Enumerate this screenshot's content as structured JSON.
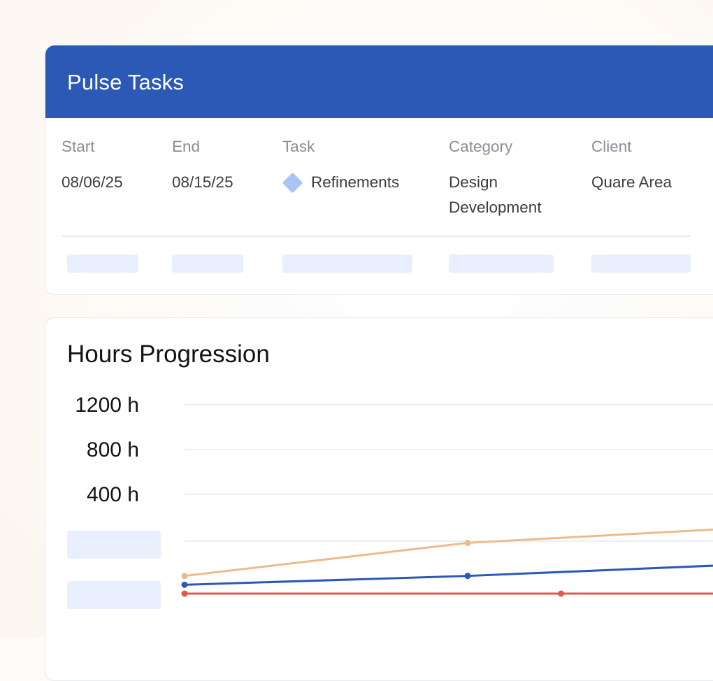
{
  "tasks_card": {
    "title": "Pulse Tasks",
    "columns": {
      "start": {
        "label": "Start",
        "value": "08/06/25"
      },
      "end": {
        "label": "End",
        "value": "08/15/25"
      },
      "task": {
        "label": "Task",
        "value": "Refinements",
        "icon": "diamond-icon",
        "icon_color": "#a9c5f7"
      },
      "category": {
        "label": "Category",
        "value_line1": "Design",
        "value_line2": "Development"
      },
      "client": {
        "label": "Client",
        "value": "Quare Area"
      }
    },
    "header_color": "#2b59b5"
  },
  "hours_card": {
    "title": "Hours Progression"
  },
  "chart_data": {
    "type": "line",
    "title": "Hours Progression",
    "y_ticks": [
      "1200 h",
      "800 h",
      "400 h"
    ],
    "series": [
      {
        "color": "#f0b98a",
        "x": [
          0,
          0.5,
          1.0
        ],
        "y": [
          150,
          430,
          560
        ]
      },
      {
        "color": "#2b59b5",
        "x": [
          0,
          0.5,
          1.0
        ],
        "y": [
          75,
          150,
          250
        ]
      },
      {
        "color": "#e0584e",
        "x": [
          0,
          0.665,
          1.0
        ],
        "y": [
          0,
          0,
          0
        ]
      }
    ],
    "ylim": [
      0,
      1600
    ],
    "grid": true
  }
}
